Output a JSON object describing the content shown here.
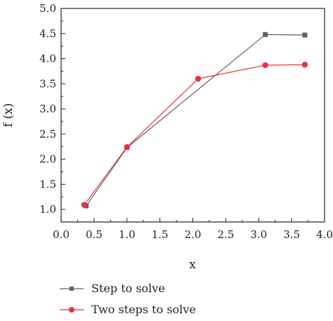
{
  "chart_data": {
    "type": "line",
    "xlabel": "x",
    "ylabel": "f (x)",
    "xlim": [
      0.0,
      4.0
    ],
    "ylim": [
      0.75,
      5.0
    ],
    "x_ticks": [
      "0.0",
      "0.5",
      "1.0",
      "1.5",
      "2.0",
      "2.5",
      "3.0",
      "3.5",
      "4.0"
    ],
    "y_ticks": [
      "1.0",
      "1.5",
      "2.0",
      "2.5",
      "3.0",
      "3.5",
      "4.0",
      "4.5",
      "5.0"
    ],
    "grid": false,
    "legend_position": "bottom",
    "series": [
      {
        "name": "Step to solve",
        "color": "#606060",
        "marker": "square",
        "x": [
          0.38,
          1.0,
          3.1,
          3.7
        ],
        "y": [
          1.07,
          2.23,
          4.48,
          4.47
        ]
      },
      {
        "name": "Two steps to solve",
        "color": "#e8323c",
        "marker": "circle",
        "x": [
          0.35,
          1.0,
          2.08,
          3.1,
          3.7
        ],
        "y": [
          1.09,
          2.24,
          3.6,
          3.87,
          3.88
        ]
      }
    ]
  }
}
